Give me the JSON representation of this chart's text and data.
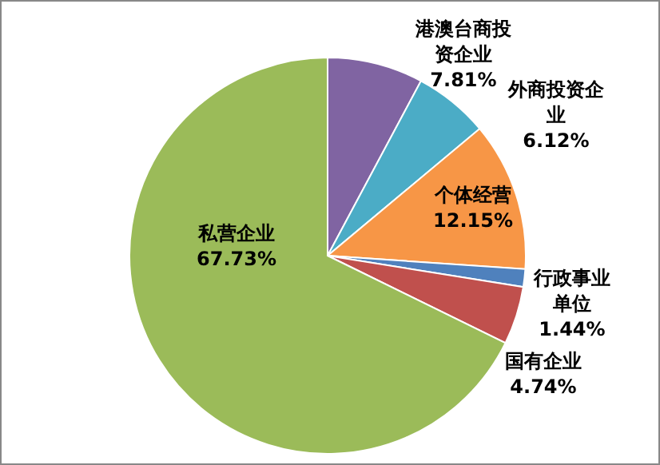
{
  "chart_data": {
    "type": "pie",
    "categories": [
      "港澳台商投资企业",
      "外商投资企业",
      "个体经营",
      "行政事业单位",
      "国有企业",
      "私营企业"
    ],
    "values": [
      7.81,
      6.12,
      12.15,
      1.44,
      4.74,
      67.73
    ],
    "value_labels": [
      "7.81%",
      "6.12%",
      "12.15%",
      "1.44%",
      "4.74%",
      "67.73%"
    ],
    "colors": [
      "#8064a2",
      "#4bacc6",
      "#f79646",
      "#4f81bd",
      "#c0504d",
      "#9bbb59"
    ]
  }
}
